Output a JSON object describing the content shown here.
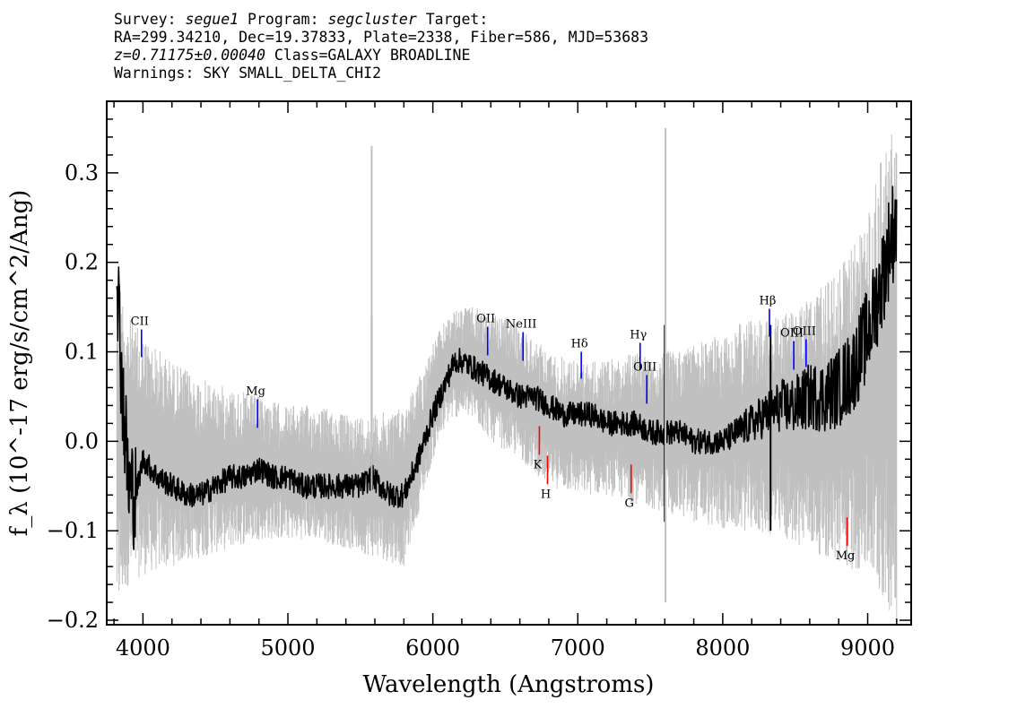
{
  "header": {
    "survey_label": "Survey:",
    "survey": "segue1",
    "program_label": "Program:",
    "program": "segcluster",
    "target_label": "Target:",
    "coords": "RA=299.34210, Dec=19.37833, Plate=2338, Fiber=586, MJD=53683",
    "redshift": "z=0.71175±0.00040",
    "class": "Class=GALAXY BROADLINE",
    "warnings": "Warnings: SKY SMALL_DELTA_CHI2"
  },
  "chart_data": {
    "type": "line",
    "xlabel": "Wavelength (Angstroms)",
    "ylabel": "f_λ (10^-17 erg/s/cm^2/Ang)",
    "xlim": [
      3750,
      9300
    ],
    "ylim": [
      -0.205,
      0.38
    ],
    "x_ticks": [
      4000,
      5000,
      6000,
      7000,
      8000,
      9000
    ],
    "y_ticks": [
      0.3,
      0.2,
      0.1,
      0.0,
      -0.1,
      -0.2
    ],
    "x_tick_labels": [
      "4000",
      "5000",
      "6000",
      "7000",
      "8000",
      "9000"
    ],
    "y_tick_labels": [
      "0.3",
      "0.2",
      "0.1",
      "0.0",
      "−0.1",
      "−0.2"
    ],
    "series": [
      {
        "role": "error envelope (gray)",
        "color": "#c0c0c0",
        "x": [
          3820,
          3900,
          4000,
          4200,
          4400,
          4600,
          4800,
          5000,
          5200,
          5400,
          5600,
          5800,
          5900,
          6000,
          6100,
          6200,
          6300,
          6400,
          6500,
          6600,
          6800,
          7000,
          7200,
          7400,
          7600,
          7800,
          8000,
          8200,
          8400,
          8600,
          8800,
          9000,
          9100,
          9200
        ],
        "upper": [
          0.2,
          0.14,
          0.12,
          0.09,
          0.07,
          0.06,
          0.05,
          0.04,
          0.04,
          0.03,
          0.03,
          0.04,
          0.07,
          0.11,
          0.14,
          0.15,
          0.15,
          0.14,
          0.14,
          0.13,
          0.1,
          0.09,
          0.09,
          0.1,
          0.1,
          0.11,
          0.12,
          0.14,
          0.14,
          0.16,
          0.19,
          0.25,
          0.32,
          0.36
        ],
        "lower": [
          -0.2,
          -0.16,
          -0.15,
          -0.14,
          -0.13,
          -0.12,
          -0.11,
          -0.11,
          -0.11,
          -0.12,
          -0.13,
          -0.14,
          -0.08,
          -0.02,
          0.02,
          0.03,
          0.02,
          0.0,
          -0.01,
          -0.02,
          -0.05,
          -0.06,
          -0.06,
          -0.07,
          -0.08,
          -0.09,
          -0.1,
          -0.1,
          -0.11,
          -0.12,
          -0.14,
          -0.15,
          -0.18,
          -0.2
        ]
      },
      {
        "role": "flux (black)",
        "color": "#000000",
        "x": [
          3820,
          3850,
          3900,
          3950,
          4000,
          4100,
          4200,
          4300,
          4400,
          4500,
          4600,
          4700,
          4800,
          4900,
          5000,
          5100,
          5200,
          5300,
          5400,
          5500,
          5580,
          5700,
          5800,
          5900,
          6000,
          6100,
          6150,
          6200,
          6300,
          6400,
          6500,
          6600,
          6700,
          6800,
          6900,
          7000,
          7100,
          7200,
          7300,
          7400,
          7500,
          7600,
          7700,
          7800,
          7900,
          8000,
          8100,
          8200,
          8300,
          8400,
          8500,
          8600,
          8700,
          8800,
          8900,
          9000,
          9100,
          9150,
          9200
        ],
        "y": [
          0.2,
          0.08,
          -0.05,
          -0.06,
          -0.02,
          -0.04,
          -0.05,
          -0.06,
          -0.06,
          -0.05,
          -0.04,
          -0.04,
          -0.03,
          -0.04,
          -0.04,
          -0.05,
          -0.05,
          -0.05,
          -0.05,
          -0.05,
          -0.04,
          -0.06,
          -0.06,
          -0.02,
          0.03,
          0.07,
          0.09,
          0.09,
          0.08,
          0.07,
          0.06,
          0.05,
          0.05,
          0.04,
          0.03,
          0.03,
          0.03,
          0.02,
          0.02,
          0.02,
          0.01,
          0.01,
          0.01,
          0.0,
          0.0,
          0.0,
          0.01,
          0.02,
          0.03,
          0.04,
          0.04,
          0.05,
          0.05,
          0.06,
          0.08,
          0.12,
          0.18,
          0.22,
          0.25
        ]
      }
    ],
    "spikes": [
      {
        "x": 5578,
        "from": -0.05,
        "to": 0.14,
        "color": "#000000"
      },
      {
        "x": 5578,
        "from": -0.1,
        "to": 0.33,
        "color": "#c0c0c0"
      },
      {
        "x": 7600,
        "from": -0.09,
        "to": 0.13,
        "color": "#000000"
      },
      {
        "x": 7605,
        "from": -0.18,
        "to": 0.35,
        "color": "#c0c0c0"
      },
      {
        "x": 8330,
        "from": -0.1,
        "to": 0.13,
        "color": "#000000"
      }
    ],
    "line_markers": [
      {
        "label": "CII",
        "x": 3990,
        "y1": 0.094,
        "y2": 0.125,
        "color": "#0000ff"
      },
      {
        "label": "Mg",
        "x": 4790,
        "y1": 0.015,
        "y2": 0.047,
        "color": "#0000ff"
      },
      {
        "label": "OII",
        "x": 6378,
        "y1": 0.096,
        "y2": 0.128,
        "color": "#0000ff"
      },
      {
        "label": "NeIII",
        "x": 6622,
        "y1": 0.09,
        "y2": 0.122,
        "color": "#0000ff"
      },
      {
        "label": "Hδ",
        "x": 7024,
        "y1": 0.07,
        "y2": 0.1,
        "color": "#0000ff"
      },
      {
        "label": "Hγ",
        "x": 7430,
        "y1": 0.08,
        "y2": 0.11,
        "color": "#0000ff"
      },
      {
        "label": "OIII",
        "x": 7476,
        "y1": 0.042,
        "y2": 0.074,
        "color": "#0000ff"
      },
      {
        "label": "Hβ",
        "x": 8322,
        "y1": 0.117,
        "y2": 0.148,
        "color": "#0000ff"
      },
      {
        "label": "OIII",
        "x": 8490,
        "y1": 0.08,
        "y2": 0.112,
        "color": "#0000ff"
      },
      {
        "label": "OIII",
        "x": 8575,
        "y1": 0.083,
        "y2": 0.114,
        "color": "#0000ff"
      },
      {
        "label": "K",
        "x": 6735,
        "y1": -0.015,
        "y2": 0.017,
        "color": "#ff0000"
      },
      {
        "label": "H",
        "x": 6791,
        "y1": -0.048,
        "y2": -0.016,
        "color": "#ff0000"
      },
      {
        "label": "G",
        "x": 7368,
        "y1": -0.058,
        "y2": -0.026,
        "color": "#ff0000"
      },
      {
        "label": "Mg",
        "x": 8858,
        "y1": -0.117,
        "y2": -0.085,
        "color": "#ff0000"
      }
    ],
    "grid": false
  }
}
